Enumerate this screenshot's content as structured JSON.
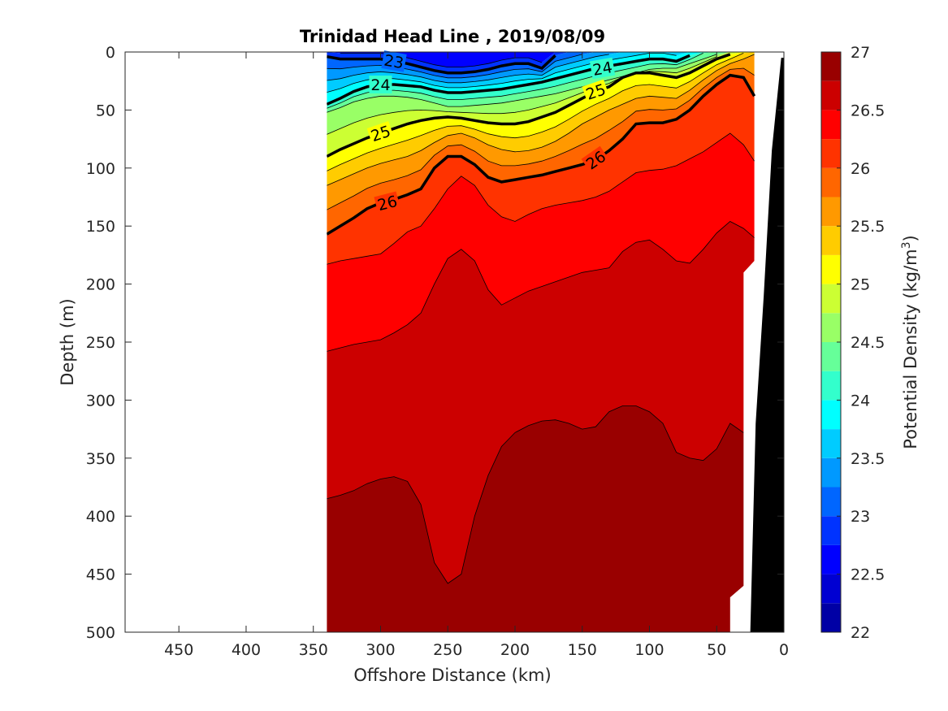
{
  "chart_data": {
    "type": "contour-section",
    "title": "Trinidad Head Line , 2019/08/09",
    "xlabel": "Offshore Distance (km)",
    "ylabel": "Depth (m)",
    "colorbar_label_main": "Potential Density (kg/m",
    "colorbar_label_sup": "3",
    "colorbar_label_end": ")",
    "xlim": [
      490,
      0
    ],
    "ylim": [
      0,
      500
    ],
    "x_reversed": true,
    "y_reversed": true,
    "xticks": [
      450,
      400,
      350,
      300,
      250,
      200,
      150,
      100,
      50,
      0
    ],
    "xtick_labels": [
      "450",
      "400",
      "350",
      "300",
      "250",
      "200",
      "150",
      "100",
      "50",
      "0"
    ],
    "yticks": [
      0,
      50,
      100,
      150,
      200,
      250,
      300,
      350,
      400,
      450,
      500
    ],
    "ytick_labels": [
      "0",
      "50",
      "100",
      "150",
      "200",
      "250",
      "300",
      "350",
      "400",
      "450",
      "500"
    ],
    "clim": [
      22,
      27
    ],
    "level_step": 0.25,
    "colorbar_ticks": [
      27,
      26.5,
      26,
      25.5,
      25,
      24.5,
      24,
      23.5,
      23,
      22.5,
      22
    ],
    "colorbar_tick_labels": [
      "27",
      "26.5",
      "26",
      "25.5",
      "25",
      "24.5",
      "24",
      "23.5",
      "23",
      "22.5",
      "22"
    ],
    "labeled_contours": [
      23,
      24,
      25,
      26
    ],
    "section_extent_km": [
      340,
      22
    ],
    "stations_km": [
      340,
      330,
      320,
      310,
      300,
      290,
      280,
      270,
      260,
      250,
      240,
      230,
      220,
      210,
      200,
      190,
      180,
      170,
      160,
      150,
      140,
      130,
      120,
      110,
      100,
      90,
      80,
      70,
      60,
      50,
      40,
      30,
      22
    ],
    "isopycnal_depths_m": {
      "23": [
        4,
        6,
        6,
        6,
        6,
        8,
        10,
        13,
        16,
        18,
        18,
        17,
        15,
        12,
        10,
        10,
        14,
        null,
        null,
        null,
        null,
        null,
        null,
        null,
        null,
        null,
        null,
        null,
        null,
        null,
        null,
        null,
        null
      ],
      "24": [
        45,
        40,
        34,
        30,
        28,
        28,
        29,
        30,
        33,
        35,
        35,
        34,
        33,
        32,
        30,
        28,
        26,
        23,
        20,
        17,
        14,
        12,
        10,
        8,
        6,
        6,
        8,
        3,
        null,
        null,
        null,
        null,
        null
      ],
      "24.5": [
        52,
        48,
        43,
        40,
        38,
        38,
        39,
        41,
        44,
        47,
        47,
        46,
        45,
        44,
        42,
        40,
        38,
        36,
        33,
        30,
        27,
        24,
        21,
        18,
        15,
        14,
        14,
        10,
        6,
        2,
        null,
        null,
        null
      ],
      "25": [
        90,
        84,
        79,
        74,
        70,
        66,
        62,
        59,
        57,
        56,
        57,
        59,
        61,
        62,
        62,
        60,
        56,
        52,
        46,
        40,
        34,
        30,
        22,
        18,
        18,
        20,
        22,
        18,
        12,
        6,
        2,
        null,
        null
      ],
      "25.5": [
        115,
        110,
        105,
        100,
        96,
        93,
        90,
        85,
        78,
        72,
        70,
        74,
        80,
        84,
        86,
        85,
        82,
        77,
        70,
        62,
        56,
        50,
        45,
        40,
        38,
        39,
        40,
        33,
        24,
        16,
        10,
        6,
        2
      ],
      "26": [
        157,
        150,
        143,
        135,
        130,
        127,
        123,
        118,
        100,
        90,
        90,
        97,
        108,
        112,
        110,
        108,
        106,
        103,
        100,
        97,
        93,
        85,
        75,
        62,
        61,
        61,
        58,
        50,
        38,
        28,
        20,
        22,
        38
      ],
      "26.25": [
        183,
        180,
        178,
        176,
        174,
        165,
        155,
        150,
        135,
        118,
        107,
        115,
        132,
        142,
        146,
        140,
        135,
        132,
        130,
        128,
        125,
        120,
        112,
        104,
        102,
        101,
        98,
        92,
        86,
        78,
        70,
        80,
        94
      ],
      "26.5": [
        258,
        255,
        252,
        250,
        248,
        242,
        235,
        225,
        200,
        178,
        170,
        180,
        205,
        218,
        212,
        206,
        202,
        198,
        194,
        190,
        188,
        186,
        172,
        164,
        162,
        170,
        180,
        182,
        170,
        156,
        146,
        152,
        160
      ],
      "26.75": [
        385,
        382,
        378,
        372,
        368,
        366,
        370,
        390,
        440,
        458,
        450,
        400,
        365,
        340,
        328,
        322,
        318,
        317,
        320,
        325,
        323,
        310,
        305,
        305,
        310,
        320,
        345,
        350,
        352,
        342,
        320,
        328,
        336
      ]
    },
    "bottom_depth_m": [
      500,
      500,
      500,
      500,
      500,
      500,
      500,
      500,
      500,
      500,
      500,
      500,
      500,
      500,
      500,
      500,
      500,
      500,
      500,
      500,
      500,
      500,
      500,
      500,
      500,
      500,
      500,
      500,
      500,
      500,
      470,
      190,
      180
    ]
  }
}
